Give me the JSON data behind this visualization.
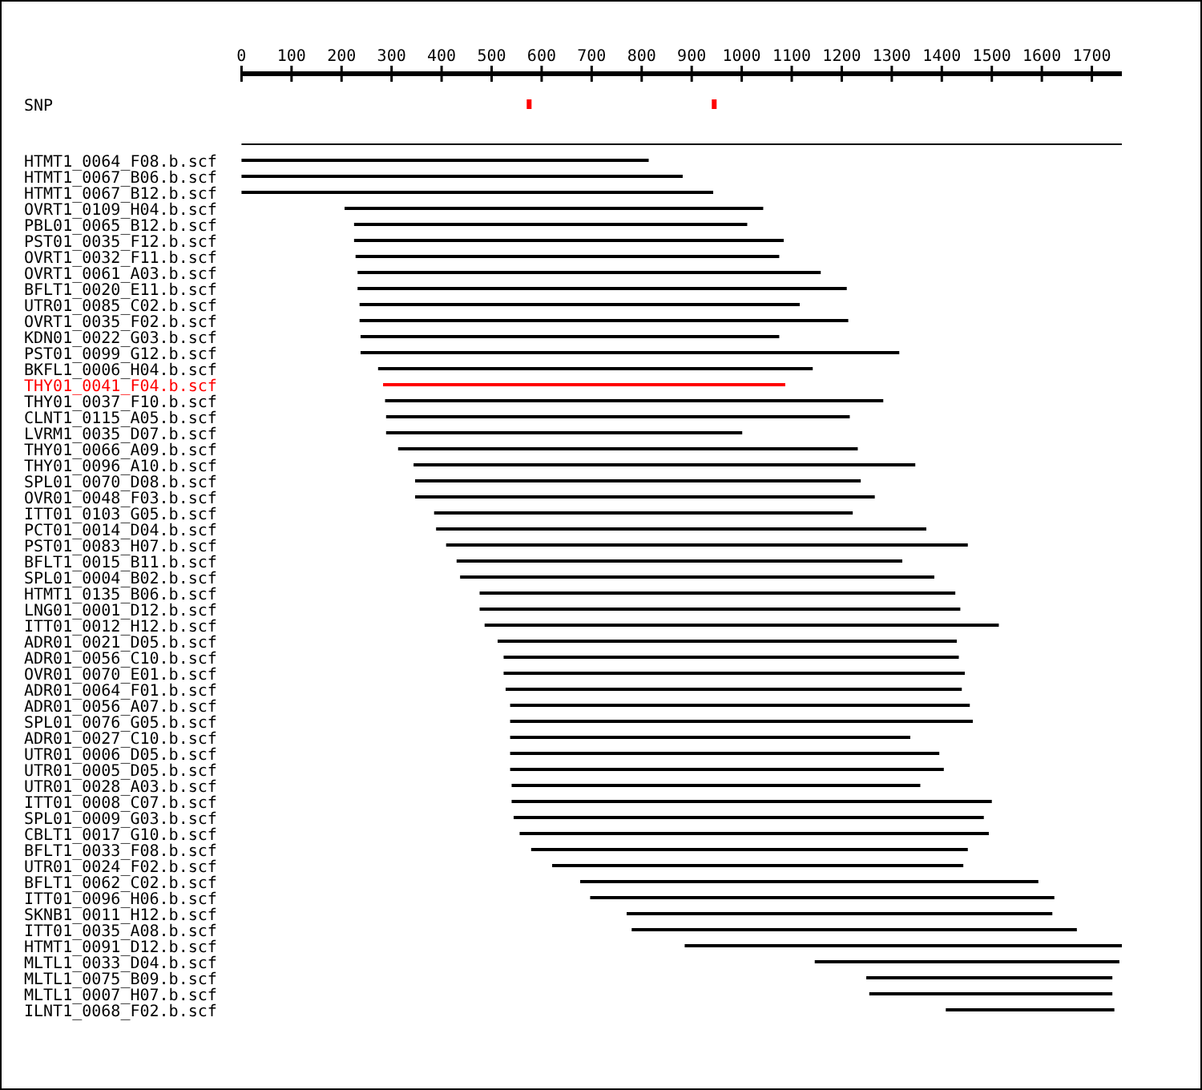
{
  "chart_data": {
    "type": "bar",
    "orientation": "horizontal",
    "xlim": [
      0,
      1760
    ],
    "xticks": [
      0,
      100,
      200,
      300,
      400,
      500,
      600,
      700,
      800,
      900,
      1000,
      1100,
      1200,
      1300,
      1400,
      1500,
      1600,
      1700
    ],
    "categories": [
      "SNP",
      null,
      "HTMT1_0064_F08.b.scf",
      "HTMT1_0067_B06.b.scf",
      "HTMT1_0067_B12.b.scf",
      "OVRT1_0109_H04.b.scf",
      "PBL01_0065_B12.b.scf",
      "PST01_0035_F12.b.scf",
      "OVRT1_0032_F11.b.scf",
      "OVRT1_0061_A03.b.scf",
      "BFLT1_0020_E11.b.scf",
      "UTR01_0085_C02.b.scf",
      "OVRT1_0035_F02.b.scf",
      "KDN01_0022_G03.b.scf",
      "PST01_0099_G12.b.scf",
      "BKFL1_0006_H04.b.scf",
      "THY01_0041_F04.b.scf",
      "THY01_0037_F10.b.scf",
      "CLNT1_0115_A05.b.scf",
      "LVRM1_0035_D07.b.scf",
      "THY01_0066_A09.b.scf",
      "THY01_0096_A10.b.scf",
      "SPL01_0070_D08.b.scf",
      "OVR01_0048_F03.b.scf",
      "ITT01_0103_G05.b.scf",
      "PCT01_0014_D04.b.scf",
      "PST01_0083_H07.b.scf",
      "BFLT1_0015_B11.b.scf",
      "SPL01_0004_B02.b.scf",
      "HTMT1_0135_B06.b.scf",
      "LNG01_0001_D12.b.scf",
      "ITT01_0012_H12.b.scf",
      "ADR01_0021_D05.b.scf",
      "ADR01_0056_C10.b.scf",
      "OVR01_0070_E01.b.scf",
      "ADR01_0064_F01.b.scf",
      "ADR01_0056_A07.b.scf",
      "SPL01_0076_G05.b.scf",
      "ADR01_0027_C10.b.scf",
      "UTR01_0006_D05.b.scf",
      "UTR01_0005_D05.b.scf",
      "UTR01_0028_A03.b.scf",
      "ITT01_0008_C07.b.scf",
      "SPL01_0009_G03.b.scf",
      "CBLT1_0017_G10.b.scf",
      "BFLT1_0033_F08.b.scf",
      "UTR01_0024_F02.b.scf",
      "BFLT1_0062_C02.b.scf",
      "ITT01_0096_H06.b.scf",
      "SKNB1_0011_H12.b.scf",
      "ITT01_0035_A08.b.scf",
      "HTMT1_0091_D12.b.scf",
      "MLTL1_0033_D04.b.scf",
      "MLTL1_0075_B09.b.scf",
      "MLTL1_0007_H07.b.scf",
      "ILNT1_0068_F02.b.scf"
    ],
    "series": [
      {
        "type": "bar",
        "base": [
          null,
          0,
          0,
          0,
          0,
          206,
          225,
          225,
          228,
          232,
          232,
          236,
          236,
          238,
          238,
          273,
          283,
          287,
          289,
          289,
          313,
          344,
          347,
          347,
          385,
          389,
          409,
          430,
          437,
          476,
          476,
          486,
          512,
          524,
          524,
          528,
          537,
          537,
          537,
          537,
          537,
          540,
          540,
          544,
          556,
          579,
          621,
          677,
          697,
          770,
          780,
          886,
          1146,
          1249,
          1255,
          1408
        ],
        "values": [
          null,
          1760,
          814,
          882,
          943,
          837,
          786,
          859,
          847,
          926,
          978,
          880,
          977,
          837,
          1077,
          869,
          804,
          996,
          927,
          712,
          919,
          1003,
          891,
          919,
          837,
          980,
          1043,
          891,
          948,
          951,
          961,
          1028,
          918,
          910,
          922,
          912,
          919,
          925,
          800,
          858,
          867,
          817,
          960,
          940,
          938,
          873,
          822,
          916,
          928,
          851,
          890,
          874,
          609,
          492,
          486,
          337
        ],
        "colors": [
          null,
          "#000000",
          "#000000",
          "#000000",
          "#000000",
          "#000000",
          "#000000",
          "#000000",
          "#000000",
          "#000000",
          "#000000",
          "#000000",
          "#000000",
          "#000000",
          "#000000",
          "#000000",
          "#ff0000",
          "#000000",
          "#000000",
          "#000000",
          "#000000",
          "#000000",
          "#000000",
          "#000000",
          "#000000",
          "#000000",
          "#000000",
          "#000000",
          "#000000",
          "#000000",
          "#000000",
          "#000000",
          "#000000",
          "#000000",
          "#000000",
          "#000000",
          "#000000",
          "#000000",
          "#000000",
          "#000000",
          "#000000",
          "#000000",
          "#000000",
          "#000000",
          "#000000",
          "#000000",
          "#000000",
          "#000000",
          "#000000",
          "#000000",
          "#000000",
          "#000000",
          "#000000",
          "#000000",
          "#000000",
          "#000000"
        ]
      },
      {
        "type": "scatter",
        "color": "#ff0000",
        "marker": "square",
        "x": [
          "SNP",
          "SNP"
        ],
        "values": [
          575,
          945
        ]
      }
    ]
  }
}
